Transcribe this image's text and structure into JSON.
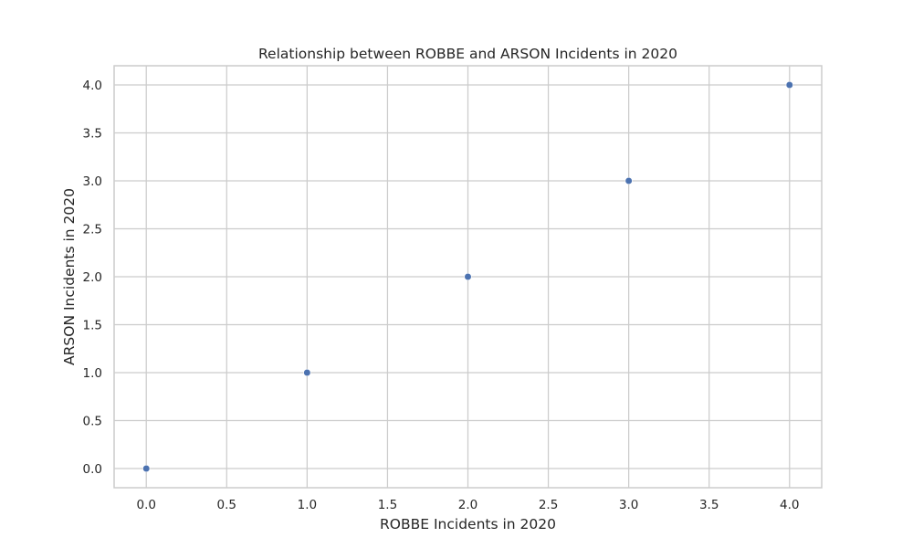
{
  "chart_data": {
    "type": "scatter",
    "title": "Relationship between ROBBE and ARSON Incidents in 2020",
    "xlabel": "ROBBE Incidents in 2020",
    "ylabel": "ARSON Incidents in 2020",
    "xlim": [
      -0.2,
      4.2
    ],
    "ylim": [
      -0.2,
      4.2
    ],
    "xticks": [
      "0.0",
      "0.5",
      "1.0",
      "1.5",
      "2.0",
      "2.5",
      "3.0",
      "3.5",
      "4.0"
    ],
    "yticks": [
      "0.0",
      "0.5",
      "1.0",
      "1.5",
      "2.0",
      "2.5",
      "3.0",
      "3.5",
      "4.0"
    ],
    "grid": true,
    "series": [
      {
        "x": [
          0,
          1,
          2,
          3,
          4
        ],
        "y": [
          0,
          1,
          2,
          3,
          4
        ],
        "color": "#4c72b0"
      }
    ]
  }
}
